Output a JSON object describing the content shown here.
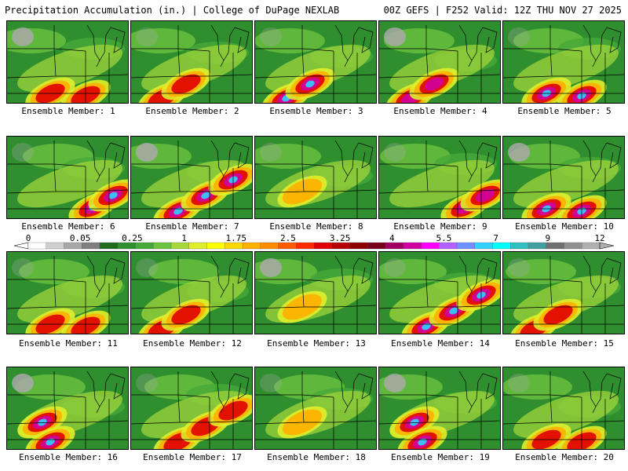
{
  "header": {
    "left": "Precipitation Accumulation (in.) | College of DuPage NEXLAB",
    "right": "00Z GEFS | F252 Valid: 12Z THU NOV 27 2025"
  },
  "members": [
    {
      "label": "Ensemble Member: 1",
      "heavy": "south",
      "intensity": 2
    },
    {
      "label": "Ensemble Member: 2",
      "heavy": "southwest",
      "intensity": 2
    },
    {
      "label": "Ensemble Member: 3",
      "heavy": "southwest",
      "intensity": 4
    },
    {
      "label": "Ensemble Member: 4",
      "heavy": "southwest",
      "intensity": 3
    },
    {
      "label": "Ensemble Member: 5",
      "heavy": "south",
      "intensity": 4
    },
    {
      "label": "Ensemble Member: 6",
      "heavy": "southeast",
      "intensity": 4
    },
    {
      "label": "Ensemble Member: 7",
      "heavy": "band",
      "intensity": 4
    },
    {
      "label": "Ensemble Member: 8",
      "heavy": "light",
      "intensity": 1
    },
    {
      "label": "Ensemble Member: 9",
      "heavy": "southeast",
      "intensity": 3
    },
    {
      "label": "Ensemble Member: 10",
      "heavy": "south",
      "intensity": 4
    },
    {
      "label": "Ensemble Member: 11",
      "heavy": "south",
      "intensity": 2
    },
    {
      "label": "Ensemble Member: 12",
      "heavy": "southwest",
      "intensity": 2
    },
    {
      "label": "Ensemble Member: 13",
      "heavy": "light",
      "intensity": 1
    },
    {
      "label": "Ensemble Member: 14",
      "heavy": "band",
      "intensity": 4
    },
    {
      "label": "Ensemble Member: 15",
      "heavy": "southwest",
      "intensity": 2
    },
    {
      "label": "Ensemble Member: 16",
      "heavy": "west",
      "intensity": 4
    },
    {
      "label": "Ensemble Member: 17",
      "heavy": "band",
      "intensity": 2
    },
    {
      "label": "Ensemble Member: 18",
      "heavy": "light",
      "intensity": 1
    },
    {
      "label": "Ensemble Member: 19",
      "heavy": "west",
      "intensity": 4
    },
    {
      "label": "Ensemble Member: 20",
      "heavy": "south",
      "intensity": 2
    }
  ],
  "colorbar": {
    "ticks": [
      "0",
      "0.05",
      "0.25",
      "1",
      "1.75",
      "2.5",
      "3.25",
      "4",
      "5.5",
      "7",
      "9",
      "12"
    ],
    "colors": [
      "#ffffff",
      "#cfcfcf",
      "#a8a8a8",
      "#7f7f7f",
      "#1e6b1e",
      "#2f8f2f",
      "#47a83a",
      "#6cc23e",
      "#a6d83a",
      "#e0ee2a",
      "#ffff00",
      "#ffd800",
      "#ffb000",
      "#ff8c00",
      "#ff5a00",
      "#ff2a00",
      "#e00000",
      "#b80000",
      "#8c0000",
      "#7a0020",
      "#a00060",
      "#d000a0",
      "#ff00ff",
      "#b060ff",
      "#7090ff",
      "#30d0ff",
      "#00ffff",
      "#30c0c0",
      "#40a0a0",
      "#707070",
      "#909090",
      "#b0b0b0"
    ]
  }
}
